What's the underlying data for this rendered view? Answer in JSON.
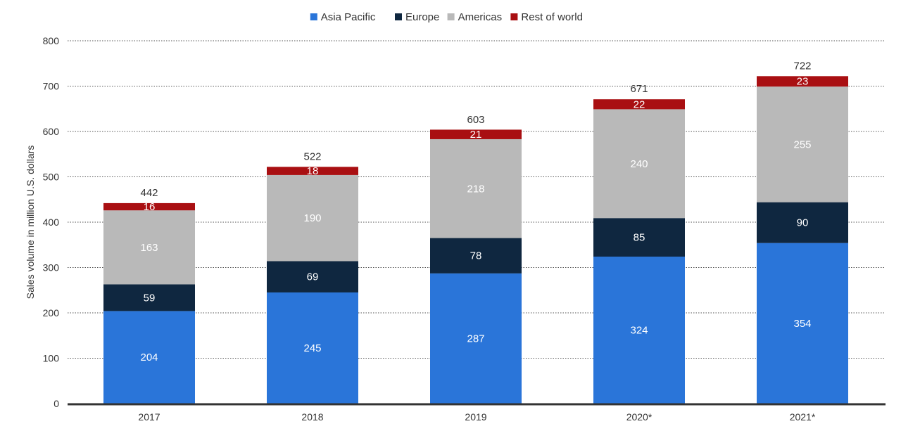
{
  "chart_data": {
    "type": "bar",
    "stacked": true,
    "categories": [
      "2017",
      "2018",
      "2019",
      "2020*",
      "2021*"
    ],
    "series": [
      {
        "name": "Asia Pacific",
        "color": "#2a75d9",
        "values": [
          204,
          245,
          287,
          324,
          354
        ]
      },
      {
        "name": "Europe",
        "color": "#0f2740",
        "values": [
          59,
          69,
          78,
          85,
          90
        ]
      },
      {
        "name": "Americas",
        "color": "#b9b9b9",
        "values": [
          163,
          190,
          218,
          240,
          255
        ]
      },
      {
        "name": "Rest of world",
        "color": "#a90f12",
        "values": [
          16,
          18,
          21,
          22,
          23
        ]
      }
    ],
    "totals": [
      442,
      522,
      603,
      671,
      722
    ],
    "title": "",
    "xlabel": "",
    "ylabel": "Sales volume in million U.S. dollars",
    "ylim": [
      0,
      800
    ],
    "yticks": [
      0,
      100,
      200,
      300,
      400,
      500,
      600,
      700,
      800
    ],
    "grid": true,
    "legend_position": "top-center"
  }
}
